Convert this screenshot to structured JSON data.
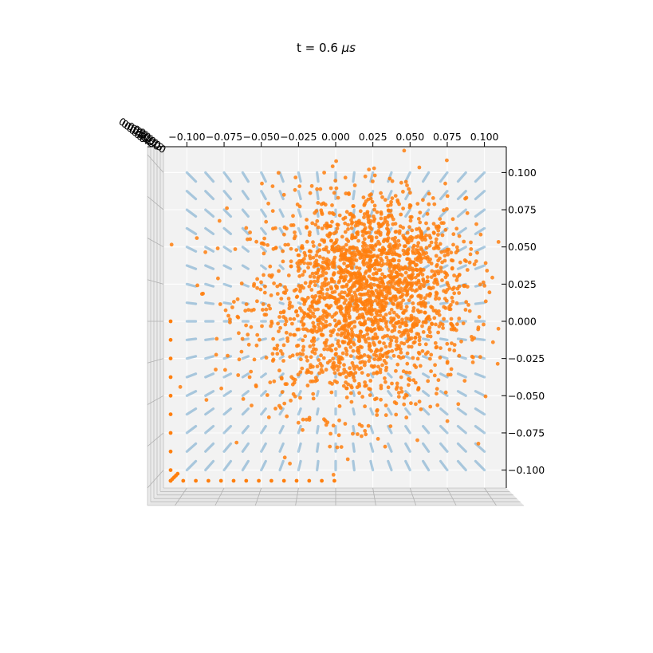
{
  "chart_data": {
    "type": "scatter",
    "projection": "3d",
    "view": "top-down",
    "title": "t = 0.6 μs",
    "title_prefix": "t = 0.6 ",
    "title_unit": "μs",
    "x_ticks": [
      "−0.100",
      "−0.075",
      "−0.050",
      "−0.025",
      "0.000",
      "0.025",
      "0.050",
      "0.075",
      "0.100"
    ],
    "x_tick_values": [
      -0.1,
      -0.075,
      -0.05,
      -0.025,
      0.0,
      0.025,
      0.05,
      0.075,
      0.1
    ],
    "y_ticks": [
      "0.100",
      "0.075",
      "0.050",
      "0.025",
      "0.000",
      "−0.025",
      "−0.050",
      "−0.075",
      "−0.100"
    ],
    "y_tick_values": [
      0.1,
      0.075,
      0.05,
      0.025,
      0.0,
      -0.025,
      -0.05,
      -0.075,
      -0.1
    ],
    "z_ticks": [
      "0.000",
      "0.025",
      "0.050",
      "0.075",
      "0.100",
      "0.125",
      "0.150",
      "0.175",
      "0.200"
    ],
    "xlim": [
      -0.115,
      0.115
    ],
    "ylim": [
      -0.115,
      0.115
    ],
    "grid": true,
    "colors": {
      "grid_series": "#1f77b4",
      "particle_series": "#ff7f0e",
      "pane": "#f2f2f2",
      "gridline": "#b0b0b0"
    },
    "series": [
      {
        "kind": "grid",
        "grid_min": -0.1,
        "grid_max": 0.1,
        "grid_step": 0.0125
      },
      {
        "kind": "cloud",
        "center": [
          0.015,
          0.01
        ],
        "spread": [
          0.045,
          0.045
        ],
        "count": 1700,
        "dense_center": [
          0.035,
          0.04
        ],
        "dense_count": 500,
        "edge_left_y": [
          -0.1,
          0.0
        ],
        "edge_bottom_x": [
          -0.1,
          0.0
        ]
      }
    ]
  }
}
